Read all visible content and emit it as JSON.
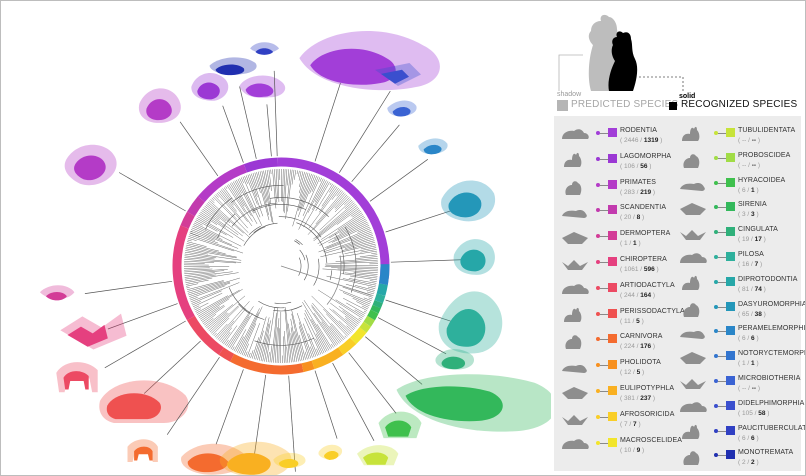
{
  "legend": {
    "shadow_tag": "shadow",
    "solid_tag": "solid",
    "predicted_label": "PREDICTED SPECIES",
    "recognized_label": "RECOGNIZED SPECIES",
    "shadow_color": "#b5b5b5",
    "solid_color": "#000000"
  },
  "orders": [
    {
      "name": "RODENTIA",
      "predicted": "2446",
      "recognized": "1319",
      "color": "#a23ed8",
      "icon": "rat-icon"
    },
    {
      "name": "LAGOMORPHA",
      "predicted": "106",
      "recognized": "56",
      "color": "#9b38d4",
      "icon": "rabbit-icon"
    },
    {
      "name": "PRIMATES",
      "predicted": "283",
      "recognized": "219",
      "color": "#b43bc7",
      "icon": "monkey-icon"
    },
    {
      "name": "SCANDENTIA",
      "predicted": "20",
      "recognized": "8",
      "color": "#c23aae",
      "icon": "treeshrew-icon"
    },
    {
      "name": "DERMOPTERA",
      "predicted": "1",
      "recognized": "1",
      "color": "#d33c97",
      "icon": "colugo-icon"
    },
    {
      "name": "CHIROPTERA",
      "predicted": "1061",
      "recognized": "596",
      "color": "#e5407f",
      "icon": "bat-icon"
    },
    {
      "name": "ARTIODACTYLA",
      "predicted": "244",
      "recognized": "164",
      "color": "#ec4a63",
      "icon": "deer-icon"
    },
    {
      "name": "PERISSODACTYLA",
      "predicted": "11",
      "recognized": "5",
      "color": "#ef5150",
      "icon": "rhino-icon"
    },
    {
      "name": "CARNIVORA",
      "predicted": "224",
      "recognized": "176",
      "color": "#f46b2f",
      "icon": "fox-icon"
    },
    {
      "name": "PHOLIDOTA",
      "predicted": "12",
      "recognized": "5",
      "color": "#f7901f",
      "icon": "pangolin-icon"
    },
    {
      "name": "EULIPOTYPHLA",
      "predicted": "381",
      "recognized": "237",
      "color": "#f9b021",
      "icon": "shrew-icon"
    },
    {
      "name": "AFROSORICIDA",
      "predicted": "7",
      "recognized": "7",
      "color": "#f9ce27",
      "icon": "tenrec-icon"
    },
    {
      "name": "MACROSCELIDEA",
      "predicted": "10",
      "recognized": "9",
      "color": "#f2e52c",
      "icon": "elephant-shrew-icon"
    },
    {
      "name": "TUBULIDENTATA",
      "predicted": "--",
      "recognized": "--",
      "color": "#c7e33a",
      "icon": "aardvark-icon"
    },
    {
      "name": "PROBOSCIDEA",
      "predicted": "--",
      "recognized": "--",
      "color": "#a1dc46",
      "icon": "elephant-icon"
    },
    {
      "name": "HYRACOIDEA",
      "predicted": "6",
      "recognized": "1",
      "color": "#3fc04d",
      "icon": "hyrax-icon"
    },
    {
      "name": "SIRENIA",
      "predicted": "3",
      "recognized": "3",
      "color": "#33b85b",
      "icon": "manatee-icon"
    },
    {
      "name": "CINGULATA",
      "predicted": "19",
      "recognized": "17",
      "color": "#2fb07a",
      "icon": "armadillo-icon"
    },
    {
      "name": "PILOSA",
      "predicted": "16",
      "recognized": "7",
      "color": "#2eb09c",
      "icon": "anteater-icon"
    },
    {
      "name": "DIPROTODONTIA",
      "predicted": "81",
      "recognized": "74",
      "color": "#26a7a8",
      "icon": "kangaroo-icon"
    },
    {
      "name": "DASYUROMORPHIA",
      "predicted": "65",
      "recognized": "38",
      "color": "#2497b9",
      "icon": "quoll-icon"
    },
    {
      "name": "PERAMELEMORPHIA",
      "predicted": "6",
      "recognized": "6",
      "color": "#2a86c8",
      "icon": "bandicoot-icon"
    },
    {
      "name": "NOTORYCTEMORPHIA",
      "predicted": "1",
      "recognized": "1",
      "color": "#3275cf",
      "icon": "marsupial-mole-icon"
    },
    {
      "name": "MICROBIOTHERIA",
      "predicted": "--",
      "recognized": "--",
      "color": "#3a63d3",
      "icon": "monito-icon"
    },
    {
      "name": "DIDELPHIMORPHIA",
      "predicted": "105",
      "recognized": "58",
      "color": "#3a4fce",
      "icon": "opossum-icon"
    },
    {
      "name": "PAUCITUBERCULATA",
      "predicted": "6",
      "recognized": "6",
      "color": "#3040c3",
      "icon": "shrew-opossum-icon"
    },
    {
      "name": "MONOTREMATA",
      "predicted": "2",
      "recognized": "2",
      "color": "#202fb0",
      "icon": "platypus-icon"
    }
  ]
}
